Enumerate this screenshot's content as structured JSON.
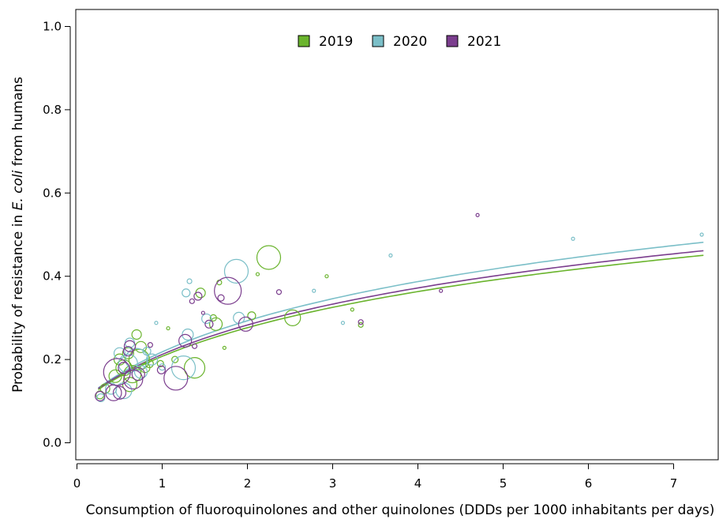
{
  "chart_data": {
    "type": "scatter",
    "title": "",
    "xlabel": "Consumption of fluoroquinolones and other quinolones (DDDs per 1000 inhabitants per days)",
    "ylabel": {
      "prefix": "Probability of resistance in ",
      "italic": "E. coli",
      "suffix": " from humans"
    },
    "xlim": [
      0,
      7.5
    ],
    "ylim": [
      0,
      1.0
    ],
    "x_ticks": [
      "0",
      "1",
      "2",
      "3",
      "4",
      "5",
      "6",
      "7"
    ],
    "y_ticks": [
      "0.0",
      "0.2",
      "0.4",
      "0.6",
      "0.8",
      "1.0"
    ],
    "legend_position": "top-center",
    "grid": false,
    "series": [
      {
        "name": "2019",
        "color": "#6ab42d",
        "points": [
          {
            "x": 0.27,
            "y": 0.115,
            "r": 5
          },
          {
            "x": 0.33,
            "y": 0.13,
            "r": 6
          },
          {
            "x": 0.45,
            "y": 0.16,
            "r": 8
          },
          {
            "x": 0.5,
            "y": 0.2,
            "r": 7
          },
          {
            "x": 0.55,
            "y": 0.18,
            "r": 10
          },
          {
            "x": 0.6,
            "y": 0.215,
            "r": 7
          },
          {
            "x": 0.62,
            "y": 0.14,
            "r": 9
          },
          {
            "x": 0.65,
            "y": 0.165,
            "r": 11
          },
          {
            "x": 0.7,
            "y": 0.26,
            "r": 6
          },
          {
            "x": 0.73,
            "y": 0.2,
            "r": 13
          },
          {
            "x": 0.75,
            "y": 0.23,
            "r": 7
          },
          {
            "x": 0.8,
            "y": 0.18,
            "r": 6
          },
          {
            "x": 0.85,
            "y": 0.19,
            "r": 5
          },
          {
            "x": 0.98,
            "y": 0.19,
            "r": 4
          },
          {
            "x": 1.07,
            "y": 0.275,
            "r": 2
          },
          {
            "x": 1.15,
            "y": 0.2,
            "r": 4
          },
          {
            "x": 1.38,
            "y": 0.18,
            "r": 13
          },
          {
            "x": 1.45,
            "y": 0.36,
            "r": 6
          },
          {
            "x": 1.6,
            "y": 0.3,
            "r": 4
          },
          {
            "x": 1.63,
            "y": 0.285,
            "r": 8
          },
          {
            "x": 1.67,
            "y": 0.385,
            "r": 3
          },
          {
            "x": 1.73,
            "y": 0.228,
            "r": 2
          },
          {
            "x": 2.05,
            "y": 0.305,
            "r": 5
          },
          {
            "x": 2.12,
            "y": 0.405,
            "r": 2
          },
          {
            "x": 2.25,
            "y": 0.445,
            "r": 15
          },
          {
            "x": 2.53,
            "y": 0.3,
            "r": 10
          },
          {
            "x": 2.93,
            "y": 0.4,
            "r": 2
          },
          {
            "x": 3.23,
            "y": 0.32,
            "r": 2
          },
          {
            "x": 3.33,
            "y": 0.283,
            "r": 3
          }
        ]
      },
      {
        "name": "2020",
        "color": "#7bbfc8",
        "points": [
          {
            "x": 0.28,
            "y": 0.108,
            "r": 5
          },
          {
            "x": 0.4,
            "y": 0.13,
            "r": 7
          },
          {
            "x": 0.5,
            "y": 0.215,
            "r": 7
          },
          {
            "x": 0.55,
            "y": 0.125,
            "r": 10
          },
          {
            "x": 0.6,
            "y": 0.19,
            "r": 12
          },
          {
            "x": 0.62,
            "y": 0.24,
            "r": 6
          },
          {
            "x": 0.7,
            "y": 0.2,
            "r": 14
          },
          {
            "x": 0.75,
            "y": 0.17,
            "r": 8
          },
          {
            "x": 0.82,
            "y": 0.22,
            "r": 5
          },
          {
            "x": 0.88,
            "y": 0.2,
            "r": 7
          },
          {
            "x": 0.93,
            "y": 0.288,
            "r": 2
          },
          {
            "x": 1.0,
            "y": 0.182,
            "r": 4
          },
          {
            "x": 1.25,
            "y": 0.18,
            "r": 15
          },
          {
            "x": 1.28,
            "y": 0.36,
            "r": 5
          },
          {
            "x": 1.3,
            "y": 0.26,
            "r": 7
          },
          {
            "x": 1.32,
            "y": 0.388,
            "r": 3
          },
          {
            "x": 1.52,
            "y": 0.298,
            "r": 6
          },
          {
            "x": 1.87,
            "y": 0.412,
            "r": 15
          },
          {
            "x": 1.9,
            "y": 0.3,
            "r": 7
          },
          {
            "x": 2.78,
            "y": 0.365,
            "r": 2
          },
          {
            "x": 3.12,
            "y": 0.288,
            "r": 2
          },
          {
            "x": 3.68,
            "y": 0.45,
            "r": 2
          },
          {
            "x": 5.82,
            "y": 0.49,
            "r": 2
          },
          {
            "x": 7.33,
            "y": 0.5,
            "r": 2
          }
        ]
      },
      {
        "name": "2021",
        "color": "#7b3e8e",
        "points": [
          {
            "x": 0.27,
            "y": 0.112,
            "r": 6
          },
          {
            "x": 0.43,
            "y": 0.12,
            "r": 10
          },
          {
            "x": 0.47,
            "y": 0.17,
            "r": 17
          },
          {
            "x": 0.5,
            "y": 0.12,
            "r": 8
          },
          {
            "x": 0.55,
            "y": 0.18,
            "r": 7
          },
          {
            "x": 0.6,
            "y": 0.22,
            "r": 6
          },
          {
            "x": 0.62,
            "y": 0.232,
            "r": 7
          },
          {
            "x": 0.66,
            "y": 0.152,
            "r": 12
          },
          {
            "x": 0.72,
            "y": 0.165,
            "r": 8
          },
          {
            "x": 0.86,
            "y": 0.235,
            "r": 3
          },
          {
            "x": 0.99,
            "y": 0.175,
            "r": 5
          },
          {
            "x": 1.16,
            "y": 0.155,
            "r": 15
          },
          {
            "x": 1.27,
            "y": 0.245,
            "r": 8
          },
          {
            "x": 1.35,
            "y": 0.34,
            "r": 3
          },
          {
            "x": 1.38,
            "y": 0.232,
            "r": 3
          },
          {
            "x": 1.42,
            "y": 0.352,
            "r": 5
          },
          {
            "x": 1.48,
            "y": 0.312,
            "r": 2
          },
          {
            "x": 1.55,
            "y": 0.285,
            "r": 5
          },
          {
            "x": 1.69,
            "y": 0.348,
            "r": 4
          },
          {
            "x": 1.77,
            "y": 0.365,
            "r": 17
          },
          {
            "x": 1.98,
            "y": 0.285,
            "r": 9
          },
          {
            "x": 2.37,
            "y": 0.362,
            "r": 3
          },
          {
            "x": 3.33,
            "y": 0.29,
            "r": 3
          },
          {
            "x": 4.27,
            "y": 0.365,
            "r": 2
          },
          {
            "x": 4.7,
            "y": 0.547,
            "r": 2
          }
        ]
      }
    ],
    "fit_curves": [
      {
        "name": "2019",
        "color": "#6ab42d",
        "a": 0.0566,
        "b": 0.0899,
        "xmin": 0.25,
        "xmax": 7.35
      },
      {
        "name": "2020",
        "color": "#7bbfc8",
        "a": 0.0614,
        "b": 0.0907,
        "xmin": 0.25,
        "xmax": 7.35
      },
      {
        "name": "2021",
        "color": "#7b3e8e",
        "a": 0.0581,
        "b": 0.0914,
        "xmin": 0.25,
        "xmax": 7.35
      }
    ]
  }
}
